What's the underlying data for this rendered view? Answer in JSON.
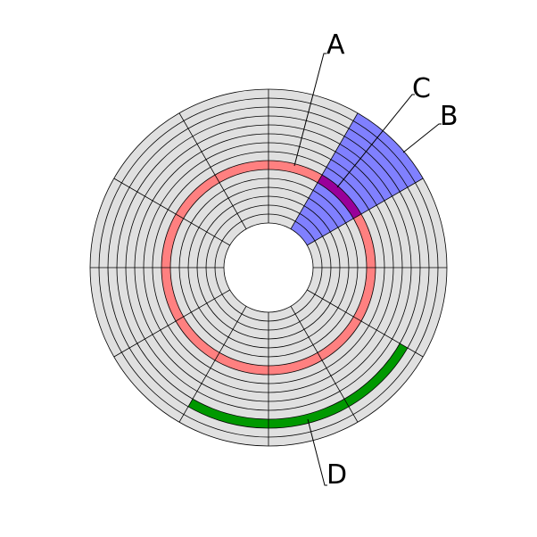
{
  "labels": {
    "a": "A",
    "b": "B",
    "c": "C",
    "d": "D"
  }
}
